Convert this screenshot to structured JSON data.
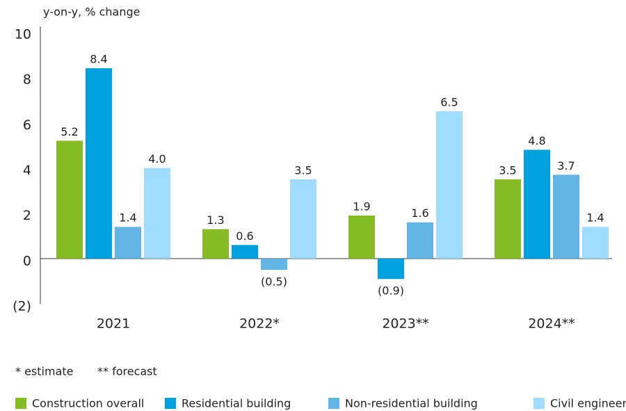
{
  "chart_data": {
    "type": "bar",
    "axis_label": "y-on-y, % change",
    "categories": [
      "2021",
      "2022*",
      "2023**",
      "2024**"
    ],
    "series": [
      {
        "name": "Construction overall",
        "color": "#86bc25",
        "values": [
          5.2,
          1.3,
          1.9,
          3.5
        ],
        "value_labels": [
          "5.2",
          "1.3",
          "1.9",
          "3.5"
        ]
      },
      {
        "name": "Residential building",
        "color": "#00a1de",
        "values": [
          8.4,
          0.6,
          -0.9,
          4.8
        ],
        "value_labels": [
          "8.4",
          "0.6",
          "(0.9)",
          "4.8"
        ]
      },
      {
        "name": "Non-residential building",
        "color": "#62b5e5",
        "values": [
          1.4,
          -0.5,
          1.6,
          3.7
        ],
        "value_labels": [
          "1.4",
          "(0.5)",
          "1.6",
          "3.7"
        ]
      },
      {
        "name": "Civil engineering",
        "color": "#a0dcff",
        "values": [
          4.0,
          3.5,
          6.5,
          1.4
        ],
        "value_labels": [
          "4.0",
          "3.5",
          "6.5",
          "1.4"
        ]
      }
    ],
    "ylim": [
      -2,
      10
    ],
    "yticks": [
      {
        "value": -2,
        "label": "(2)"
      },
      0,
      2,
      4,
      6,
      8,
      10
    ],
    "grid": false,
    "notes": [
      "* estimate",
      "** forecast"
    ]
  }
}
